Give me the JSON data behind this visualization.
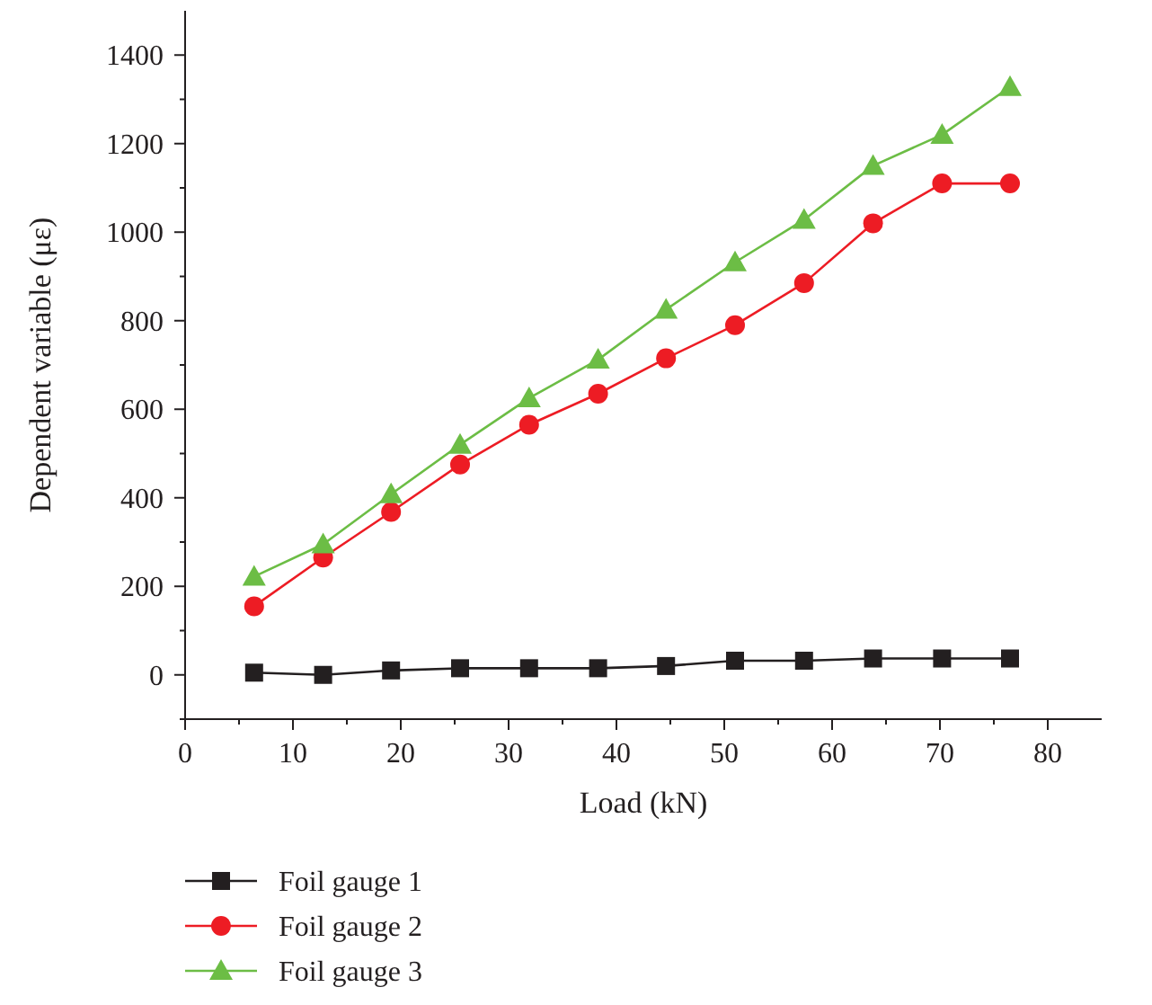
{
  "chart_data": {
    "type": "line",
    "xlabel": "Load (kN)",
    "ylabel": "Dependent variable (με)",
    "x": [
      6.4,
      12.8,
      19.1,
      25.5,
      31.9,
      38.3,
      44.6,
      51,
      57.4,
      63.8,
      70.2,
      76.5
    ],
    "xlim": [
      0,
      85
    ],
    "ylim": [
      -100,
      1500
    ],
    "xticks": [
      0,
      {
        "value": 5,
        "label": null
      },
      10,
      {
        "value": 15,
        "label": null
      },
      20,
      {
        "value": 25,
        "label": null
      },
      30,
      {
        "value": 35,
        "label": null
      },
      40,
      {
        "value": 45,
        "label": null
      },
      50,
      {
        "value": 55,
        "label": null
      },
      60,
      {
        "value": 65,
        "label": null
      },
      70,
      {
        "value": 75,
        "label": null
      },
      80
    ],
    "yticks": [
      {
        "value": -100,
        "label": null
      },
      0,
      {
        "value": 100,
        "label": null
      },
      200,
      {
        "value": 300,
        "label": null
      },
      400,
      {
        "value": 500,
        "label": null
      },
      600,
      {
        "value": 700,
        "label": null
      },
      800,
      {
        "value": 900,
        "label": null
      },
      1000,
      {
        "value": 1100,
        "label": null
      },
      1200,
      {
        "value": 1300,
        "label": null
      },
      1400
    ],
    "grid": false,
    "legend": "bottom left",
    "series": [
      {
        "name": "Foil gauge 1",
        "color": "#231f20",
        "marker": "square",
        "values": [
          5,
          0,
          10,
          15,
          15,
          15,
          20,
          32,
          32,
          37,
          37,
          37
        ]
      },
      {
        "name": "Foil gauge 2",
        "color": "#ed1c24",
        "marker": "circle",
        "values": [
          155,
          265,
          368,
          475,
          565,
          635,
          715,
          790,
          885,
          1020,
          1110,
          1110
        ]
      },
      {
        "name": "Foil gauge 3",
        "color": "#6cbd45",
        "marker": "triangle",
        "values": [
          222,
          295,
          408,
          520,
          625,
          712,
          825,
          932,
          1028,
          1150,
          1220,
          1328
        ]
      }
    ]
  }
}
